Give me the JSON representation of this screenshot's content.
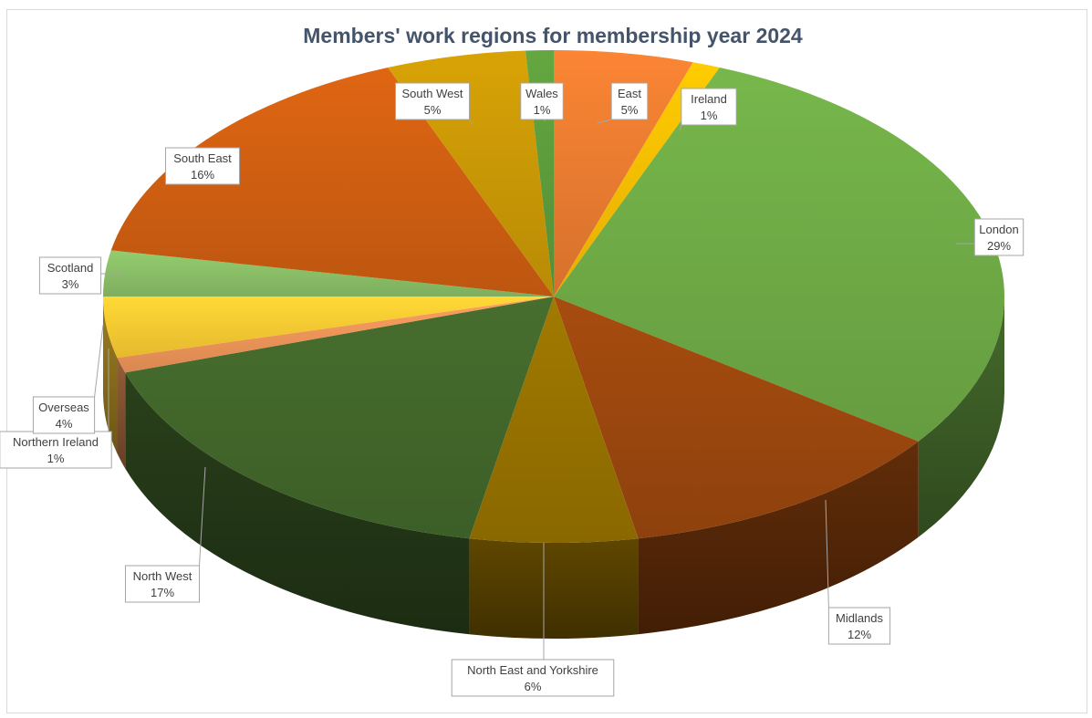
{
  "chart_data": {
    "type": "pie",
    "title": "Members' work regions for membership year 2024",
    "slices": [
      {
        "label": "East",
        "value": 5,
        "value_label": "5%",
        "color": "#ed7d31"
      },
      {
        "label": "Ireland",
        "value": 1,
        "value_label": "1%",
        "color": "#ffc000"
      },
      {
        "label": "London",
        "value": 29,
        "value_label": "29%",
        "color": "#70ad47"
      },
      {
        "label": "Midlands",
        "value": 12,
        "value_label": "12%",
        "color": "#9e480e"
      },
      {
        "label": "North East and Yorkshire",
        "value": 6,
        "value_label": "6%",
        "color": "#997300"
      },
      {
        "label": "North West",
        "value": 17,
        "value_label": "17%",
        "color": "#43682b"
      },
      {
        "label": "Northern Ireland",
        "value": 1,
        "value_label": "1%",
        "color": "#f1975a"
      },
      {
        "label": "Overseas",
        "value": 4,
        "value_label": "4%",
        "color": "#ffcd33"
      },
      {
        "label": "Scotland",
        "value": 3,
        "value_label": "3%",
        "color": "#8cc168"
      },
      {
        "label": "South East",
        "value": 16,
        "value_label": "16%",
        "color": "#d26012"
      },
      {
        "label": "South West",
        "value": 5,
        "value_label": "5%",
        "color": "#cc9a06"
      },
      {
        "label": "Wales",
        "value": 1,
        "value_label": "1%",
        "color": "#5e9e3c"
      }
    ],
    "legend": "none",
    "style": "3d"
  }
}
